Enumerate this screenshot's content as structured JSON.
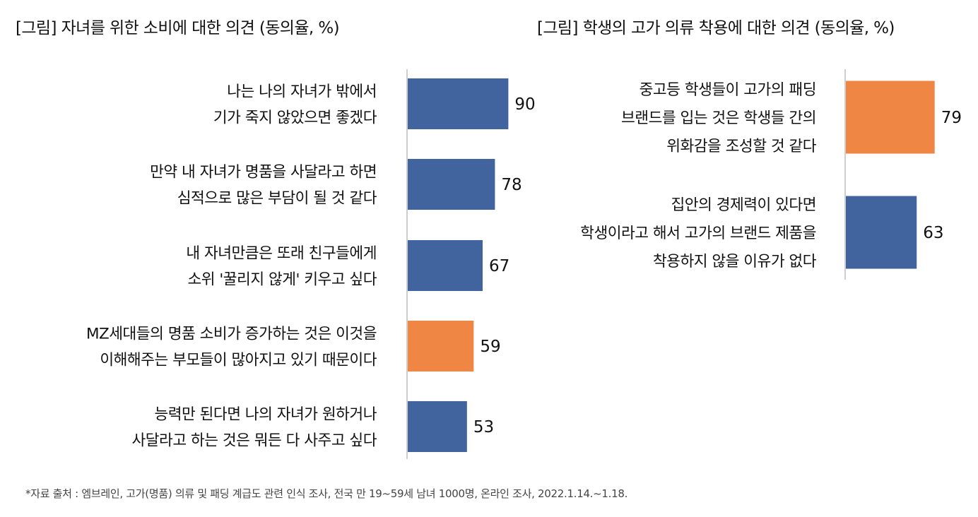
{
  "colors": {
    "blue": "#41649E",
    "orange": "#F08644",
    "axis": "#BDBDBD"
  },
  "chart_data": [
    {
      "type": "bar",
      "orientation": "horizontal",
      "title": "[그림] 자녀를 위한 소비에 대한 의견 (동의율, %)",
      "categories": [
        [
          "나는 나의 자녀가 밖에서",
          "기가 죽지  않았으면 좋겠다"
        ],
        [
          "만약 내 자녀가 명품을 사달라고 하면",
          "심적으로 많은 부담이 될 것 같다"
        ],
        [
          "내 자녀만큼은 또래 친구들에게",
          "소위 '꿀리지 않게' 키우고 싶다"
        ],
        [
          "MZ세대들의 명품 소비가 증가하는 것은 이것을",
          "이해해주는 부모들이 많아지고 있기 때문이다"
        ],
        [
          "능력만 된다면 나의 자녀가 원하거나",
          "사달라고 하는 것은 뭐든 다 사주고  싶다"
        ]
      ],
      "values": [
        90,
        78,
        67,
        59,
        53
      ],
      "bar_colors": [
        "blue",
        "blue",
        "blue",
        "orange",
        "blue"
      ],
      "xlim": [
        0,
        100
      ],
      "grid": false
    },
    {
      "type": "bar",
      "orientation": "horizontal",
      "title": "[그림] 학생의 고가 의류 착용에 대한 의견 (동의율, %)",
      "categories": [
        [
          "중고등 학생들이 고가의 패딩",
          "브랜드를 입는 것은 학생들 간의",
          "위화감을 조성할 것 같다"
        ],
        [
          "집안의 경제력이 있다면",
          "학생이라고 해서 고가의 브랜드 제품을",
          "착용하지 않을 이유가 없다"
        ]
      ],
      "values": [
        79,
        63
      ],
      "bar_colors": [
        "orange",
        "blue"
      ],
      "xlim": [
        0,
        100
      ],
      "grid": false
    }
  ],
  "footnote": "*자료 출처 : 엠브레인, 고가(명품) 의류 및 패딩 계급도 관련 인식 조사, 전국 만 19~59세 남녀 1000명, 온라인 조사, 2022.1.14.~1.18."
}
